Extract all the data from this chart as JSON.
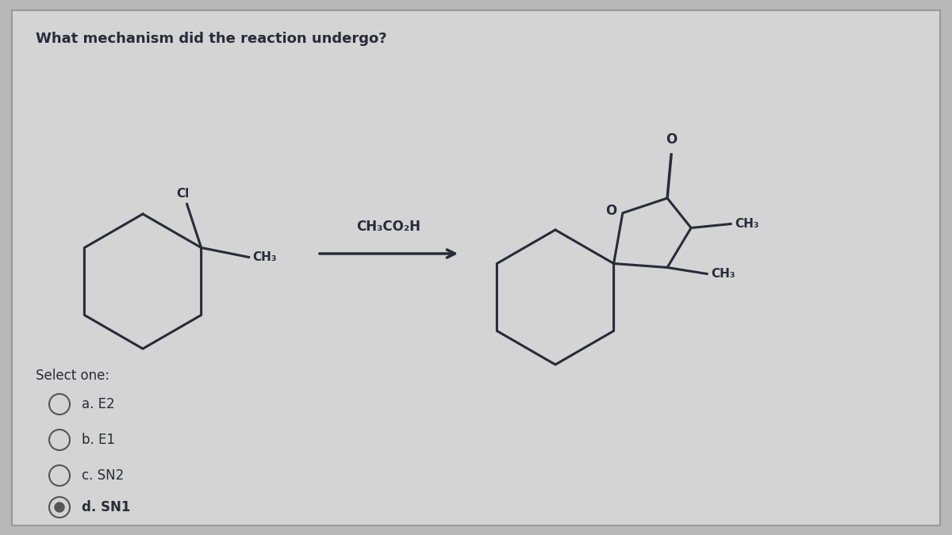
{
  "title": "What mechanism did the reaction undergo?",
  "title_fontsize": 13,
  "title_fontweight": "bold",
  "background_color": "#b8b8b8",
  "card_color": "#cccccc",
  "border_color": "#999999",
  "question_text": "What mechanism did the reaction undergo?",
  "reagent_text": "CH₃CO₂H",
  "options": [
    "a. E2",
    "b. E1",
    "c. SN2",
    "d. SN1"
  ],
  "selected_option": 3,
  "select_text": "Select one:",
  "text_color": "#1a1a1a",
  "mol_color": "#2a2a3a",
  "mol_lw": 2.2
}
